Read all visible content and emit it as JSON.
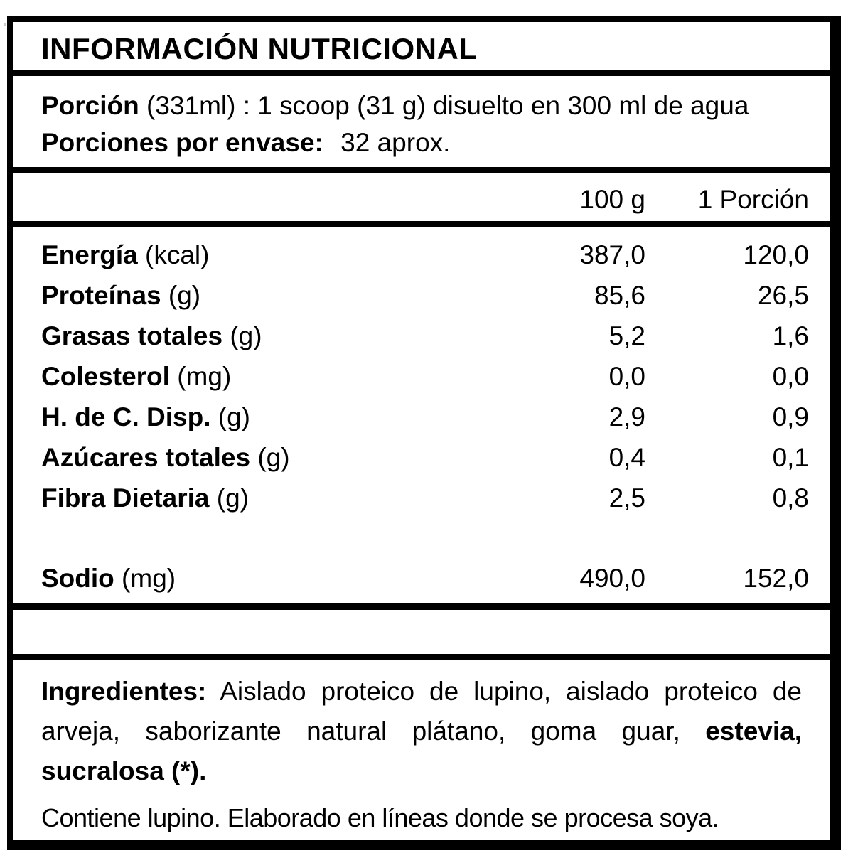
{
  "title": "INFORMACIÓN NUTRICIONAL",
  "serving": {
    "portion_label": "Porción",
    "portion_detail": "(331ml) : 1 scoop (31 g) disuelto en 300 ml de agua",
    "servings_label": "Porciones por envase:",
    "servings_value": "32 aprox."
  },
  "table": {
    "columns": {
      "per_100g": "100 g",
      "per_portion": "1 Porción"
    },
    "rows": [
      {
        "name": "Energía",
        "unit": "(kcal)",
        "per100": "387,0",
        "portion": "120,0"
      },
      {
        "name": "Proteínas",
        "unit": "(g)",
        "per100": "85,6",
        "portion": "26,5"
      },
      {
        "name": "Grasas totales",
        "unit": "(g)",
        "per100": "5,2",
        "portion": "1,6"
      },
      {
        "name": "Colesterol",
        "unit": "(mg)",
        "per100": "0,0",
        "portion": "0,0"
      },
      {
        "name": "H. de C. Disp.",
        "unit": "(g)",
        "per100": "2,9",
        "portion": "0,9"
      },
      {
        "name": "Azúcares totales",
        "unit": "(g)",
        "per100": "0,4",
        "portion": "0,1"
      },
      {
        "name": "Fibra Dietaria",
        "unit": "(g)",
        "per100": "2,5",
        "portion": "0,8"
      },
      {
        "name": "Sodio",
        "unit": "(mg)",
        "per100": "490,0",
        "portion": "152,0"
      }
    ]
  },
  "ingredients": {
    "label": "Ingredientes:",
    "list_regular": " Aislado proteico de lupino, aislado proteico de arveja, saborizante natural plátano, goma guar, ",
    "list_bold": "estevia, sucralosa (*)."
  },
  "allergen_note": "Contiene lupino. Elaborado en líneas donde se procesa soya.",
  "colors": {
    "border": "#000000",
    "background": "#ffffff",
    "text": "#000000"
  }
}
